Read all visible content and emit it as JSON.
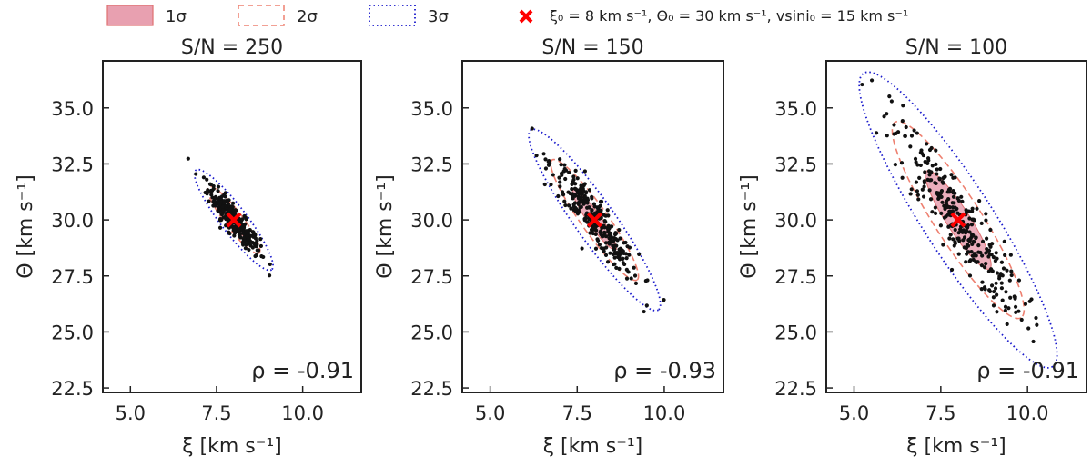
{
  "legend": {
    "items": [
      {
        "label": "1σ",
        "style": "filled",
        "color": "#e8a0b0",
        "edge": "#e07070"
      },
      {
        "label": "2σ",
        "style": "dashed",
        "color": "#ee8070"
      },
      {
        "label": "3σ",
        "style": "dotted",
        "color": "#1a1acc"
      }
    ],
    "marker_label": "ξ₀ = 8 km s⁻¹, Θ₀ = 30 km s⁻¹, vsini₀ = 15 km s⁻¹",
    "marker_color": "#ff0000",
    "placement": "top"
  },
  "chart_data": [
    {
      "type": "scatter",
      "title": "S/N = 250",
      "xlabel": "ξ [km s⁻¹]",
      "ylabel": "Θ [km s⁻¹]",
      "xlim": [
        4.2,
        11.7
      ],
      "ylim": [
        22.3,
        37.1
      ],
      "xticks": [
        "5.0",
        "7.5",
        "10.0"
      ],
      "yticks": [
        "22.5",
        "25.0",
        "27.5",
        "30.0",
        "32.5",
        "35.0"
      ],
      "center": {
        "x": 8.0,
        "y": 30.0
      },
      "rho_label": "ρ = -0.91",
      "rho": -0.91,
      "sigma_x": 0.38,
      "sigma_y": 0.75,
      "n_points": 300,
      "grid": false
    },
    {
      "type": "scatter",
      "title": "S/N = 150",
      "xlabel": "ξ [km s⁻¹]",
      "ylabel": "Θ [km s⁻¹]",
      "xlim": [
        4.2,
        11.7
      ],
      "ylim": [
        22.3,
        37.1
      ],
      "xticks": [
        "5.0",
        "7.5",
        "10.0"
      ],
      "yticks": [
        "22.5",
        "25.0",
        "27.5",
        "30.0",
        "32.5",
        "35.0"
      ],
      "center": {
        "x": 8.0,
        "y": 30.0
      },
      "rho_label": "ρ = -0.93",
      "rho": -0.93,
      "sigma_x": 0.63,
      "sigma_y": 1.35,
      "n_points": 300,
      "grid": false
    },
    {
      "type": "scatter",
      "title": "S/N = 100",
      "xlabel": "ξ [km s⁻¹]",
      "ylabel": "Θ [km s⁻¹]",
      "xlim": [
        4.2,
        11.7
      ],
      "ylim": [
        22.3,
        37.1
      ],
      "xticks": [
        "5.0",
        "7.5",
        "10.0"
      ],
      "yticks": [
        "22.5",
        "25.0",
        "27.5",
        "30.0",
        "32.5",
        "35.0"
      ],
      "center": {
        "x": 8.0,
        "y": 30.0
      },
      "rho_label": "ρ = -0.91",
      "rho": -0.91,
      "sigma_x": 0.95,
      "sigma_y": 2.2,
      "n_points": 300,
      "grid": false
    }
  ]
}
